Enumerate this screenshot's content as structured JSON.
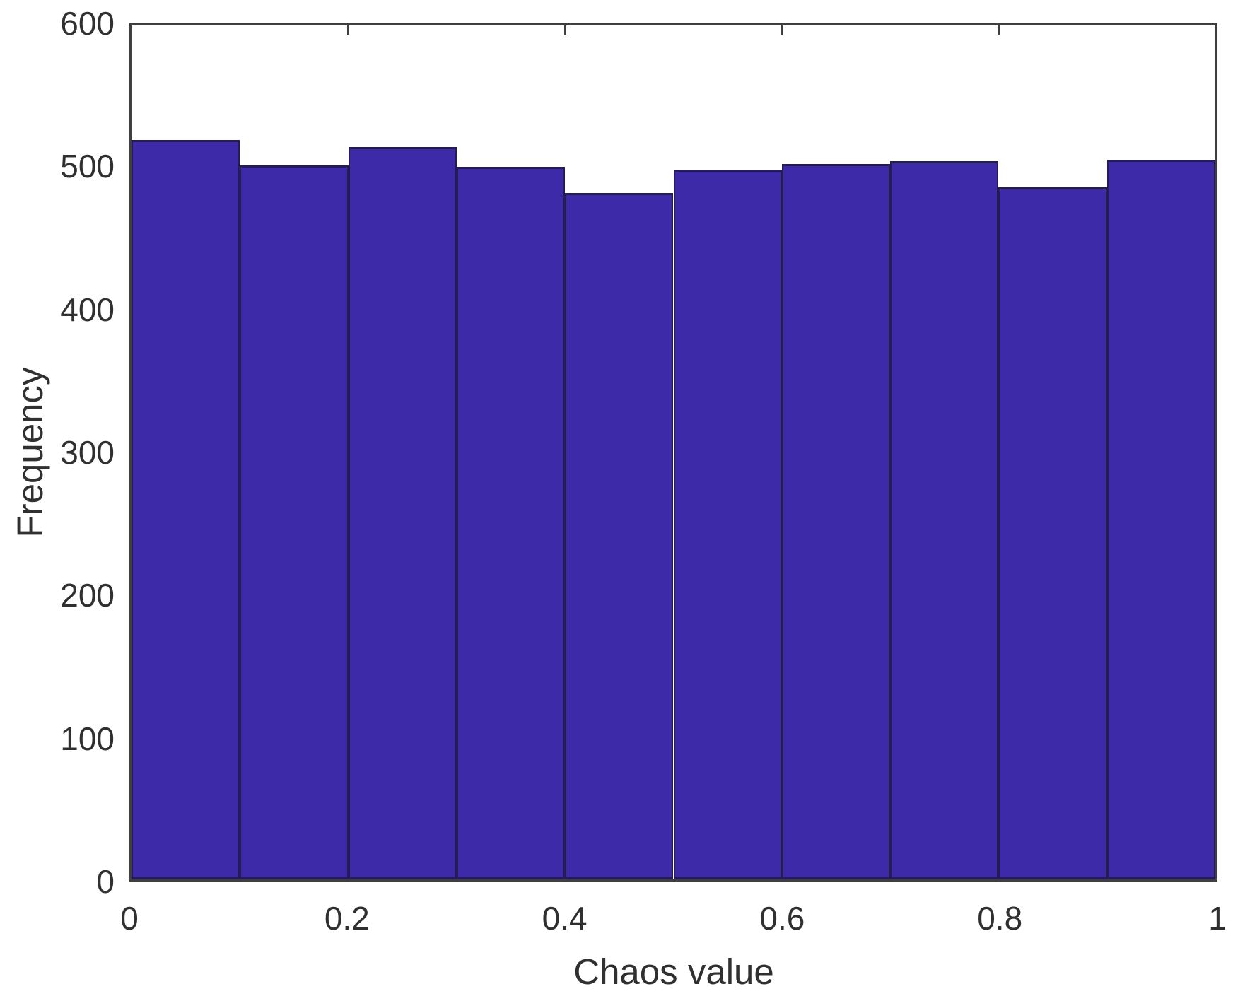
{
  "figure": {
    "background_color": "#ffffff",
    "text_color": "#303030",
    "axis_line_color": "#3f3f3f"
  },
  "chart_data": {
    "type": "bar",
    "subtype": "histogram",
    "title": "",
    "xlabel": "Chaos value",
    "ylabel": "Frequency",
    "xlim": [
      0,
      1
    ],
    "ylim": [
      0,
      600
    ],
    "bin_width": 0.1,
    "bin_edges": [
      0,
      0.1,
      0.2,
      0.3,
      0.4,
      0.5,
      0.6,
      0.7,
      0.8,
      0.9,
      1.0
    ],
    "values": [
      517,
      499,
      512,
      498,
      480,
      496,
      500,
      502,
      484,
      503
    ],
    "x_ticks": {
      "values": [
        0,
        0.2,
        0.4,
        0.6,
        0.8,
        1
      ],
      "labels": [
        "0",
        "0.2",
        "0.4",
        "0.6",
        "0.8",
        "1"
      ]
    },
    "y_ticks": {
      "values": [
        0,
        100,
        200,
        300,
        400,
        500,
        600
      ],
      "labels": [
        "0",
        "100",
        "200",
        "300",
        "400",
        "500",
        "600"
      ]
    },
    "grid": false,
    "legend": null,
    "box": true,
    "tick_direction": "in",
    "colors": {
      "bar_fill": "#3C2AA8",
      "bar_edge": "#251C52"
    }
  }
}
